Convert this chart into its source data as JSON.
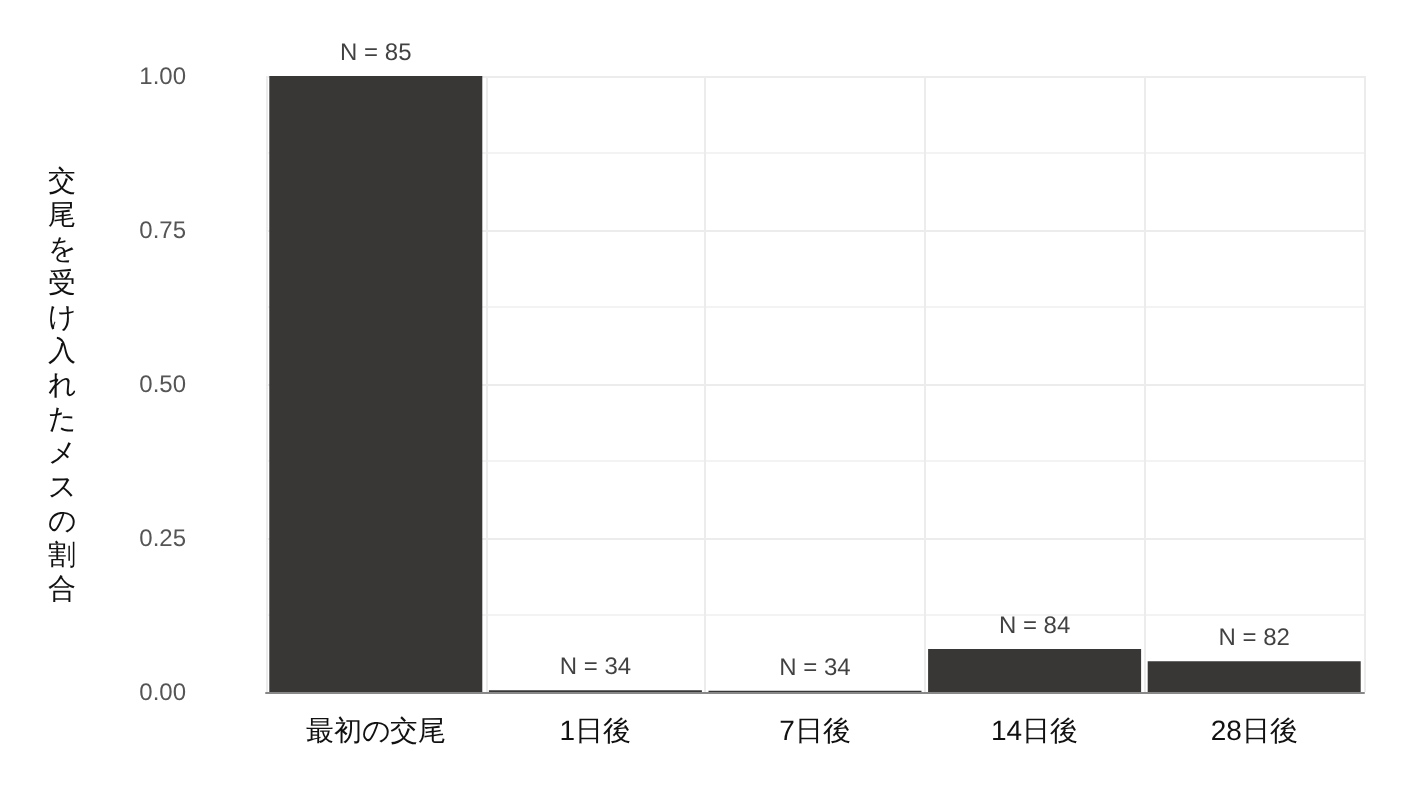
{
  "chart_data": {
    "type": "bar",
    "ylabel": "交尾を受け入れたメスの割合",
    "categories": [
      "最初の交尾",
      "1日後",
      "7日後",
      "14日後",
      "28日後"
    ],
    "values": [
      1.0,
      0.003,
      0.002,
      0.07,
      0.05
    ],
    "color": "#383735",
    "ylim": [
      0,
      1.0
    ],
    "yticks": [
      {
        "value": 0,
        "label": "0.00"
      },
      {
        "value": 0.25,
        "label": "0.25"
      },
      {
        "value": 0.5,
        "label": "0.50"
      },
      {
        "value": 0.75,
        "label": "0.75"
      },
      {
        "value": 1.0,
        "label": "1.00"
      }
    ],
    "grid": true,
    "annotations": [
      {
        "text": "N = 85",
        "x": "最初の交尾",
        "y": 1.0
      },
      {
        "text": "N = 34",
        "x": "1日後",
        "y": 0.003
      },
      {
        "text": "N = 34",
        "x": "7日後",
        "y": 0.002
      },
      {
        "text": "N = 84",
        "x": "14日後",
        "y": 0.07
      },
      {
        "text": "N = 82",
        "x": "28日後",
        "y": 0.05
      }
    ]
  }
}
